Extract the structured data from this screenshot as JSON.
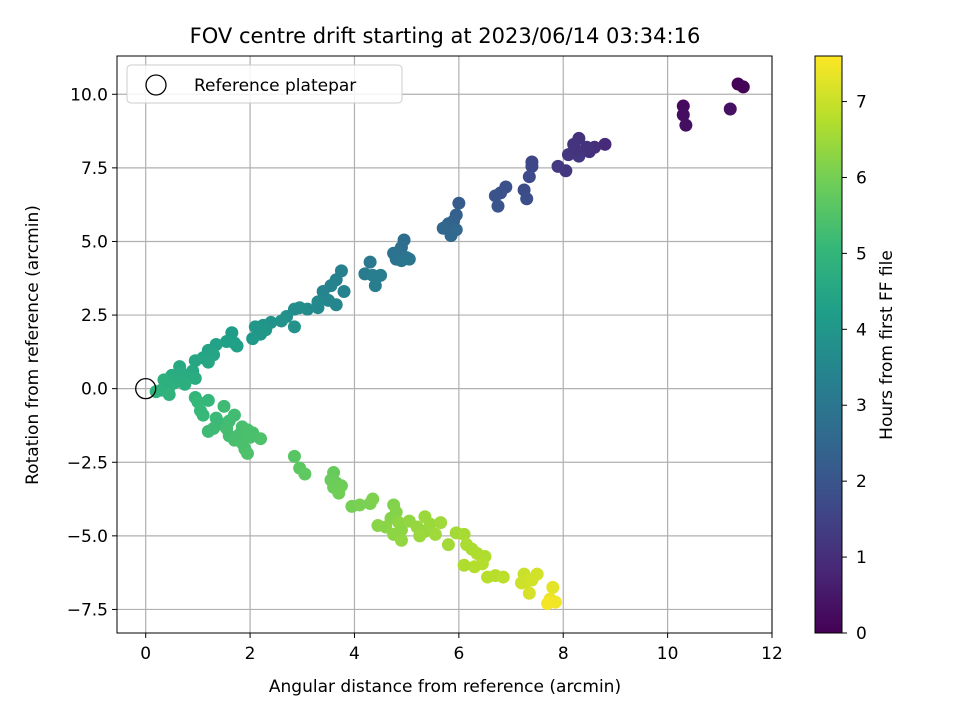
{
  "chart_data": {
    "type": "scatter",
    "title": "FOV centre drift starting at 2023/06/14 03:34:16",
    "xlabel": "Angular distance from reference (arcmin)",
    "ylabel": "Rotation from reference (arcmin)",
    "colorbar_label": "Hours from first FF file",
    "xlim": [
      -0.55,
      12
    ],
    "ylim": [
      -8.3,
      11.3
    ],
    "clim": [
      0,
      7.6
    ],
    "xticks": [
      0,
      2,
      4,
      6,
      8,
      10,
      12
    ],
    "yticks": [
      -7.5,
      -5.0,
      -2.5,
      0.0,
      2.5,
      5.0,
      7.5,
      10.0
    ],
    "cticks": [
      0,
      1,
      2,
      3,
      4,
      5,
      6,
      7
    ],
    "grid": true,
    "colormap": "viridis",
    "legend": {
      "placement": "top-left",
      "entries": [
        "Reference platepar"
      ]
    },
    "reference_point": {
      "x": 0,
      "y": 0
    },
    "points": [
      {
        "x": 11.35,
        "y": 10.35,
        "t": 0.05
      },
      {
        "x": 11.45,
        "y": 10.25,
        "t": 0.08
      },
      {
        "x": 10.3,
        "y": 9.6,
        "t": 0.2
      },
      {
        "x": 10.3,
        "y": 9.3,
        "t": 0.25
      },
      {
        "x": 10.35,
        "y": 8.95,
        "t": 0.3
      },
      {
        "x": 11.2,
        "y": 9.5,
        "t": 0.35
      },
      {
        "x": 8.8,
        "y": 8.3,
        "t": 0.9
      },
      {
        "x": 8.6,
        "y": 8.2,
        "t": 1.0
      },
      {
        "x": 8.5,
        "y": 8.05,
        "t": 1.05
      },
      {
        "x": 8.3,
        "y": 8.5,
        "t": 1.1
      },
      {
        "x": 8.2,
        "y": 8.3,
        "t": 1.15
      },
      {
        "x": 8.1,
        "y": 7.95,
        "t": 1.2
      },
      {
        "x": 8.05,
        "y": 7.4,
        "t": 1.25
      },
      {
        "x": 7.9,
        "y": 7.55,
        "t": 1.3
      },
      {
        "x": 8.3,
        "y": 7.9,
        "t": 1.2
      },
      {
        "x": 8.45,
        "y": 8.2,
        "t": 1.1
      },
      {
        "x": 8.25,
        "y": 8.1,
        "t": 1.15
      },
      {
        "x": 7.4,
        "y": 7.7,
        "t": 1.6
      },
      {
        "x": 7.4,
        "y": 7.55,
        "t": 1.65
      },
      {
        "x": 7.35,
        "y": 7.2,
        "t": 1.7
      },
      {
        "x": 7.25,
        "y": 6.75,
        "t": 1.75
      },
      {
        "x": 7.3,
        "y": 6.45,
        "t": 1.8
      },
      {
        "x": 6.9,
        "y": 6.85,
        "t": 1.85
      },
      {
        "x": 6.8,
        "y": 6.65,
        "t": 1.9
      },
      {
        "x": 6.7,
        "y": 6.55,
        "t": 1.95
      },
      {
        "x": 6.75,
        "y": 6.2,
        "t": 2.0
      },
      {
        "x": 6.0,
        "y": 6.3,
        "t": 2.2
      },
      {
        "x": 5.95,
        "y": 5.9,
        "t": 2.3
      },
      {
        "x": 5.9,
        "y": 5.7,
        "t": 2.35
      },
      {
        "x": 5.85,
        "y": 5.5,
        "t": 2.4
      },
      {
        "x": 5.8,
        "y": 5.6,
        "t": 2.45
      },
      {
        "x": 5.7,
        "y": 5.45,
        "t": 2.5
      },
      {
        "x": 5.85,
        "y": 5.2,
        "t": 2.55
      },
      {
        "x": 5.95,
        "y": 5.4,
        "t": 2.5
      },
      {
        "x": 4.95,
        "y": 5.05,
        "t": 2.7
      },
      {
        "x": 4.9,
        "y": 4.8,
        "t": 2.75
      },
      {
        "x": 4.85,
        "y": 4.65,
        "t": 2.8
      },
      {
        "x": 4.75,
        "y": 4.6,
        "t": 2.85
      },
      {
        "x": 4.8,
        "y": 4.4,
        "t": 2.9
      },
      {
        "x": 5.0,
        "y": 4.45,
        "t": 2.9
      },
      {
        "x": 5.05,
        "y": 4.4,
        "t": 2.95
      },
      {
        "x": 4.9,
        "y": 4.35,
        "t": 2.95
      },
      {
        "x": 4.3,
        "y": 4.3,
        "t": 3.1
      },
      {
        "x": 4.2,
        "y": 3.9,
        "t": 3.15
      },
      {
        "x": 4.35,
        "y": 3.85,
        "t": 3.2
      },
      {
        "x": 4.5,
        "y": 3.85,
        "t": 3.2
      },
      {
        "x": 4.4,
        "y": 3.5,
        "t": 3.25
      },
      {
        "x": 3.75,
        "y": 4.0,
        "t": 3.3
      },
      {
        "x": 3.65,
        "y": 3.7,
        "t": 3.35
      },
      {
        "x": 3.55,
        "y": 3.5,
        "t": 3.4
      },
      {
        "x": 3.8,
        "y": 3.3,
        "t": 3.4
      },
      {
        "x": 3.4,
        "y": 3.3,
        "t": 3.45
      },
      {
        "x": 3.5,
        "y": 3.0,
        "t": 3.5
      },
      {
        "x": 3.65,
        "y": 2.85,
        "t": 3.5
      },
      {
        "x": 3.3,
        "y": 2.95,
        "t": 3.55
      },
      {
        "x": 3.3,
        "y": 2.75,
        "t": 3.6
      },
      {
        "x": 3.1,
        "y": 2.7,
        "t": 3.65
      },
      {
        "x": 2.95,
        "y": 2.75,
        "t": 3.7
      },
      {
        "x": 2.85,
        "y": 2.7,
        "t": 3.7
      },
      {
        "x": 2.7,
        "y": 2.45,
        "t": 3.8
      },
      {
        "x": 2.6,
        "y": 2.3,
        "t": 3.85
      },
      {
        "x": 2.85,
        "y": 2.1,
        "t": 3.85
      },
      {
        "x": 2.4,
        "y": 2.25,
        "t": 3.9
      },
      {
        "x": 2.25,
        "y": 2.15,
        "t": 3.95
      },
      {
        "x": 2.1,
        "y": 2.1,
        "t": 4.0
      },
      {
        "x": 2.2,
        "y": 1.85,
        "t": 4.0
      },
      {
        "x": 2.05,
        "y": 1.7,
        "t": 4.05
      },
      {
        "x": 2.3,
        "y": 2.0,
        "t": 4.0
      },
      {
        "x": 1.65,
        "y": 1.9,
        "t": 4.2
      },
      {
        "x": 1.7,
        "y": 1.55,
        "t": 4.25
      },
      {
        "x": 1.55,
        "y": 1.6,
        "t": 4.3
      },
      {
        "x": 1.75,
        "y": 1.45,
        "t": 4.3
      },
      {
        "x": 1.35,
        "y": 1.5,
        "t": 4.35
      },
      {
        "x": 1.2,
        "y": 1.3,
        "t": 4.4
      },
      {
        "x": 1.3,
        "y": 1.15,
        "t": 4.45
      },
      {
        "x": 1.1,
        "y": 1.05,
        "t": 4.45
      },
      {
        "x": 1.2,
        "y": 0.9,
        "t": 4.5
      },
      {
        "x": 0.95,
        "y": 0.95,
        "t": 4.5
      },
      {
        "x": 0.9,
        "y": 0.6,
        "t": 4.6
      },
      {
        "x": 0.65,
        "y": 0.75,
        "t": 4.6
      },
      {
        "x": 0.7,
        "y": 0.5,
        "t": 4.65
      },
      {
        "x": 0.5,
        "y": 0.45,
        "t": 4.65
      },
      {
        "x": 0.8,
        "y": 0.35,
        "t": 4.7
      },
      {
        "x": 0.95,
        "y": 0.35,
        "t": 4.7
      },
      {
        "x": 0.75,
        "y": 0.15,
        "t": 4.75
      },
      {
        "x": 0.55,
        "y": 0.2,
        "t": 4.75
      },
      {
        "x": 0.45,
        "y": 0.05,
        "t": 4.8
      },
      {
        "x": 0.35,
        "y": 0.3,
        "t": 4.8
      },
      {
        "x": 0.3,
        "y": -0.05,
        "t": 4.85
      },
      {
        "x": 0.2,
        "y": -0.1,
        "t": 4.85
      },
      {
        "x": 0.45,
        "y": -0.2,
        "t": 4.9
      },
      {
        "x": 0.95,
        "y": -0.3,
        "t": 5.0
      },
      {
        "x": 1.0,
        "y": -0.45,
        "t": 5.05
      },
      {
        "x": 1.2,
        "y": -0.4,
        "t": 5.05
      },
      {
        "x": 1.05,
        "y": -0.75,
        "t": 5.1
      },
      {
        "x": 1.1,
        "y": -0.9,
        "t": 5.1
      },
      {
        "x": 1.35,
        "y": -1.0,
        "t": 5.15
      },
      {
        "x": 1.45,
        "y": -1.2,
        "t": 5.15
      },
      {
        "x": 1.3,
        "y": -1.35,
        "t": 5.2
      },
      {
        "x": 1.2,
        "y": -1.45,
        "t": 5.2
      },
      {
        "x": 1.5,
        "y": -0.6,
        "t": 5.2
      },
      {
        "x": 1.7,
        "y": -0.9,
        "t": 5.25
      },
      {
        "x": 1.6,
        "y": -1.1,
        "t": 5.25
      },
      {
        "x": 1.55,
        "y": -1.35,
        "t": 5.3
      },
      {
        "x": 1.6,
        "y": -1.6,
        "t": 5.3
      },
      {
        "x": 1.7,
        "y": -1.75,
        "t": 5.35
      },
      {
        "x": 1.8,
        "y": -1.55,
        "t": 5.35
      },
      {
        "x": 1.85,
        "y": -1.3,
        "t": 5.35
      },
      {
        "x": 1.95,
        "y": -1.4,
        "t": 5.4
      },
      {
        "x": 1.85,
        "y": -1.85,
        "t": 5.4
      },
      {
        "x": 1.9,
        "y": -2.05,
        "t": 5.4
      },
      {
        "x": 1.95,
        "y": -2.2,
        "t": 5.45
      },
      {
        "x": 2.0,
        "y": -1.65,
        "t": 5.4
      },
      {
        "x": 2.2,
        "y": -1.7,
        "t": 5.45
      },
      {
        "x": 2.05,
        "y": -1.5,
        "t": 5.4
      },
      {
        "x": 2.85,
        "y": -2.3,
        "t": 5.6
      },
      {
        "x": 2.95,
        "y": -2.7,
        "t": 5.65
      },
      {
        "x": 3.05,
        "y": -2.9,
        "t": 5.7
      },
      {
        "x": 3.6,
        "y": -2.85,
        "t": 5.8
      },
      {
        "x": 3.55,
        "y": -3.1,
        "t": 5.85
      },
      {
        "x": 3.65,
        "y": -3.2,
        "t": 5.85
      },
      {
        "x": 3.6,
        "y": -3.35,
        "t": 5.9
      },
      {
        "x": 3.75,
        "y": -3.3,
        "t": 5.9
      },
      {
        "x": 3.7,
        "y": -3.55,
        "t": 5.95
      },
      {
        "x": 3.95,
        "y": -4.0,
        "t": 6.0
      },
      {
        "x": 4.1,
        "y": -3.95,
        "t": 6.05
      },
      {
        "x": 4.3,
        "y": -3.9,
        "t": 6.05
      },
      {
        "x": 4.35,
        "y": -3.75,
        "t": 6.1
      },
      {
        "x": 4.75,
        "y": -3.95,
        "t": 6.15
      },
      {
        "x": 4.8,
        "y": -4.2,
        "t": 6.2
      },
      {
        "x": 4.7,
        "y": -4.4,
        "t": 6.2
      },
      {
        "x": 4.6,
        "y": -4.7,
        "t": 6.25
      },
      {
        "x": 4.45,
        "y": -4.65,
        "t": 6.25
      },
      {
        "x": 4.85,
        "y": -4.55,
        "t": 6.3
      },
      {
        "x": 4.9,
        "y": -4.8,
        "t": 6.3
      },
      {
        "x": 4.75,
        "y": -4.95,
        "t": 6.3
      },
      {
        "x": 4.9,
        "y": -5.15,
        "t": 6.35
      },
      {
        "x": 5.05,
        "y": -4.5,
        "t": 6.35
      },
      {
        "x": 5.2,
        "y": -4.7,
        "t": 6.4
      },
      {
        "x": 5.35,
        "y": -4.85,
        "t": 6.4
      },
      {
        "x": 5.25,
        "y": -5.0,
        "t": 6.45
      },
      {
        "x": 5.45,
        "y": -4.6,
        "t": 6.45
      },
      {
        "x": 5.35,
        "y": -4.35,
        "t": 6.45
      },
      {
        "x": 5.55,
        "y": -4.95,
        "t": 6.5
      },
      {
        "x": 5.65,
        "y": -4.55,
        "t": 6.5
      },
      {
        "x": 5.8,
        "y": -5.3,
        "t": 6.55
      },
      {
        "x": 5.95,
        "y": -4.9,
        "t": 6.55
      },
      {
        "x": 6.1,
        "y": -4.95,
        "t": 6.6
      },
      {
        "x": 6.15,
        "y": -5.3,
        "t": 6.65
      },
      {
        "x": 6.25,
        "y": -5.45,
        "t": 6.65
      },
      {
        "x": 6.35,
        "y": -5.6,
        "t": 6.7
      },
      {
        "x": 6.5,
        "y": -5.7,
        "t": 6.7
      },
      {
        "x": 6.45,
        "y": -5.95,
        "t": 6.75
      },
      {
        "x": 6.3,
        "y": -6.05,
        "t": 6.75
      },
      {
        "x": 6.1,
        "y": -6.0,
        "t": 6.7
      },
      {
        "x": 6.55,
        "y": -6.4,
        "t": 6.8
      },
      {
        "x": 6.7,
        "y": -6.35,
        "t": 6.8
      },
      {
        "x": 6.85,
        "y": -6.4,
        "t": 6.85
      },
      {
        "x": 7.25,
        "y": -6.3,
        "t": 7.0
      },
      {
        "x": 7.3,
        "y": -6.55,
        "t": 7.05
      },
      {
        "x": 7.2,
        "y": -6.6,
        "t": 7.05
      },
      {
        "x": 7.4,
        "y": -6.5,
        "t": 7.1
      },
      {
        "x": 7.5,
        "y": -6.3,
        "t": 7.1
      },
      {
        "x": 7.35,
        "y": -6.95,
        "t": 7.15
      },
      {
        "x": 7.8,
        "y": -6.75,
        "t": 7.3
      },
      {
        "x": 7.75,
        "y": -7.15,
        "t": 7.4
      },
      {
        "x": 7.85,
        "y": -7.25,
        "t": 7.45
      },
      {
        "x": 7.7,
        "y": -7.3,
        "t": 7.5
      }
    ]
  }
}
